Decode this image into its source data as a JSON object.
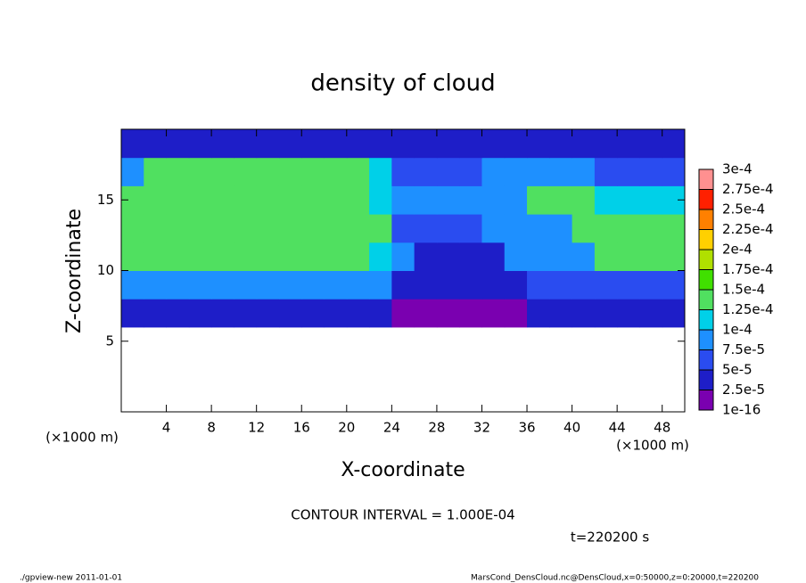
{
  "chart_data": {
    "type": "heatmap",
    "title": "density of cloud",
    "xlabel": "X-coordinate",
    "ylabel": "Z-coordinate",
    "xlabel_unit": "(×1000 m)",
    "ylabel_unit": "(×1000 m)",
    "annotation": "CONTOUR INTERVAL = 1.000E-04",
    "time_label": "t=220200 s",
    "footer_left": "./gpview-new  2011-01-01",
    "footer_right": "MarsCond_DensCloud.nc@DensCloud,x=0:50000,z=0:20000,t=220200",
    "xlim": [
      0,
      50
    ],
    "ylim": [
      0,
      20
    ],
    "xticks": [
      4,
      8,
      12,
      16,
      20,
      24,
      28,
      32,
      36,
      40,
      44,
      48
    ],
    "yticks": [
      5,
      10,
      15
    ],
    "x": [
      1,
      3,
      5,
      7,
      9,
      11,
      13,
      15,
      17,
      19,
      21,
      23,
      25,
      27,
      29,
      31,
      33,
      35,
      37,
      39,
      41,
      43,
      45,
      47,
      49
    ],
    "y": [
      1,
      3,
      5,
      7,
      9,
      11,
      13,
      15,
      17,
      19
    ],
    "z": [
      [
        null,
        null,
        null,
        null,
        null,
        null,
        null,
        null,
        null,
        null,
        null,
        null,
        null,
        null,
        null,
        null,
        null,
        null,
        null,
        null,
        null,
        null,
        null,
        null,
        null
      ],
      [
        null,
        null,
        null,
        null,
        null,
        null,
        null,
        null,
        null,
        null,
        null,
        null,
        null,
        null,
        null,
        null,
        null,
        null,
        null,
        null,
        null,
        null,
        null,
        null,
        null
      ],
      [
        null,
        null,
        null,
        null,
        null,
        null,
        null,
        null,
        null,
        null,
        null,
        null,
        null,
        null,
        null,
        null,
        null,
        null,
        null,
        null,
        null,
        null,
        null,
        null,
        null
      ],
      [
        4e-05,
        4e-05,
        4e-05,
        4e-05,
        4e-05,
        4e-05,
        4e-05,
        4e-05,
        4e-05,
        4e-05,
        4e-05,
        4e-05,
        2e-05,
        2e-05,
        2e-05,
        2e-05,
        2e-05,
        2e-05,
        4e-05,
        4e-05,
        4e-05,
        4e-05,
        4e-05,
        4e-05,
        4e-05
      ],
      [
        9e-05,
        9e-05,
        9e-05,
        9e-05,
        9e-05,
        9e-05,
        9e-05,
        9e-05,
        9e-05,
        9e-05,
        9e-05,
        9e-05,
        4e-05,
        4e-05,
        4e-05,
        4e-05,
        4e-05,
        4e-05,
        7e-05,
        7e-05,
        7e-05,
        7e-05,
        7e-05,
        7e-05,
        7e-05
      ],
      [
        0.00014,
        0.00014,
        0.00014,
        0.00014,
        0.00014,
        0.00014,
        0.00014,
        0.00014,
        0.00014,
        0.00014,
        0.00014,
        0.00012,
        8e-05,
        5e-05,
        5e-05,
        5e-05,
        5e-05,
        8e-05,
        8e-05,
        8e-05,
        8e-05,
        0.00013,
        0.00013,
        0.00013,
        0.00013
      ],
      [
        0.000145,
        0.000145,
        0.000145,
        0.000145,
        0.000145,
        0.000145,
        0.000145,
        0.000145,
        0.000145,
        0.000145,
        0.000145,
        0.00013,
        7e-05,
        6e-05,
        6e-05,
        6e-05,
        9e-05,
        9e-05,
        9e-05,
        9e-05,
        0.000145,
        0.000145,
        0.000145,
        0.000145,
        0.000145
      ],
      [
        0.000145,
        0.000145,
        0.000145,
        0.000145,
        0.000145,
        0.000145,
        0.000145,
        0.000145,
        0.000145,
        0.000145,
        0.000145,
        0.00012,
        8e-05,
        8e-05,
        8e-05,
        9e-05,
        9e-05,
        9e-05,
        0.00013,
        0.00013,
        0.00013,
        0.00012,
        0.00012,
        0.00012,
        0.00012
      ],
      [
        9e-05,
        0.000145,
        0.000145,
        0.000145,
        0.000145,
        0.000145,
        0.000145,
        0.000145,
        0.000145,
        0.000145,
        0.000145,
        0.00011,
        7e-05,
        7e-05,
        7e-05,
        7e-05,
        0.0001,
        0.0001,
        0.0001,
        9e-05,
        9e-05,
        6e-05,
        6e-05,
        6e-05,
        6e-05
      ],
      [
        5e-05,
        5e-05,
        5e-05,
        5e-05,
        5e-05,
        5e-05,
        5e-05,
        5e-05,
        5e-05,
        5e-05,
        5e-05,
        5e-05,
        3e-05,
        3e-05,
        3e-05,
        3e-05,
        3e-05,
        3e-05,
        3e-05,
        3e-05,
        3e-05,
        3e-05,
        3e-05,
        3e-05,
        3e-05
      ]
    ],
    "levels": [
      {
        "value": 1e-16,
        "label": "1e-16"
      },
      {
        "value": 2.5e-05,
        "label": "2.5e-5"
      },
      {
        "value": 5e-05,
        "label": "5e-5"
      },
      {
        "value": 7.5e-05,
        "label": "7.5e-5"
      },
      {
        "value": 0.0001,
        "label": "1e-4"
      },
      {
        "value": 0.000125,
        "label": "1.25e-4"
      },
      {
        "value": 0.00015,
        "label": "1.5e-4"
      },
      {
        "value": 0.000175,
        "label": "1.75e-4"
      },
      {
        "value": 0.0002,
        "label": "2e-4"
      },
      {
        "value": 0.000225,
        "label": "2.25e-4"
      },
      {
        "value": 0.00025,
        "label": "2.5e-4"
      },
      {
        "value": 0.000275,
        "label": "2.75e-4"
      },
      {
        "value": 0.0003,
        "label": "3e-4"
      }
    ],
    "colors": [
      "#7a00b0",
      "#1e1ec8",
      "#2a4cf0",
      "#1e90ff",
      "#00d0e8",
      "#50e060",
      "#40e000",
      "#b0e000",
      "#ffd000",
      "#ff8000",
      "#ff2000",
      "#ff9090"
    ]
  }
}
